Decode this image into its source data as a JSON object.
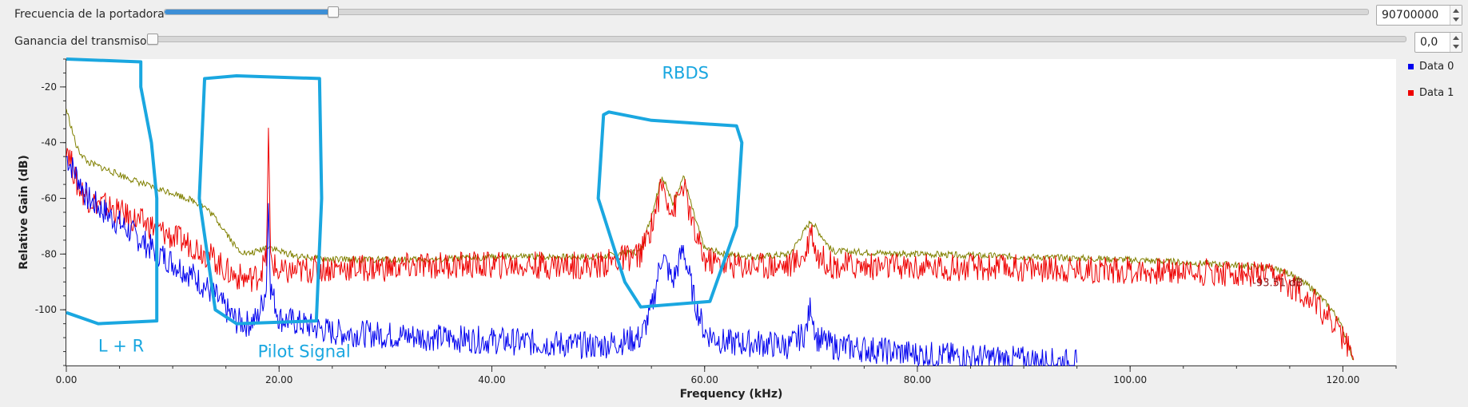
{
  "controls": {
    "carrier": {
      "label": "Frecuencia de la portadora",
      "value": "90700000",
      "slider_fraction": 0.14
    },
    "tx_gain": {
      "label": "Ganancia del transmisor",
      "value": "0,0",
      "slider_fraction": 0.0
    }
  },
  "colors": {
    "data0": "#0000ee",
    "data1": "#ee0000",
    "extra_trace": "#808000",
    "annotation": "#1aa7e0",
    "marker_text": "#8b1a1a"
  },
  "chart_data": {
    "type": "line",
    "xlabel": "Frequency (kHz)",
    "ylabel": "Relative Gain (dB)",
    "xlim": [
      0,
      125
    ],
    "ylim": [
      -120,
      -10
    ],
    "x_ticks": [
      "0.00",
      "20.00",
      "40.00",
      "60.00",
      "80.00",
      "100.00",
      "120.00"
    ],
    "y_ticks": [
      "-20",
      "-40",
      "-60",
      "-80",
      "-100"
    ],
    "legend_position": "right",
    "series": [
      {
        "name": "Data 0",
        "color": "#0000ee",
        "x": [
          0,
          1,
          2,
          4,
          6,
          8,
          10,
          12,
          14,
          15,
          16,
          17,
          18,
          18.8,
          19,
          19.2,
          20,
          22,
          25,
          30,
          35,
          40,
          45,
          50,
          54,
          55,
          56,
          57,
          58,
          59,
          60,
          62,
          65,
          68,
          69.5,
          70,
          70.5,
          72,
          75,
          80,
          85,
          90,
          95
        ],
        "y": [
          -45,
          -52,
          -60,
          -66,
          -72,
          -78,
          -83,
          -88,
          -95,
          -100,
          -104,
          -105,
          -103,
          -92,
          -60,
          -92,
          -103,
          -105,
          -108,
          -109,
          -110,
          -111,
          -112,
          -113,
          -110,
          -100,
          -80,
          -90,
          -78,
          -96,
          -108,
          -112,
          -112,
          -113,
          -108,
          -98,
          -110,
          -113,
          -114,
          -116,
          -117,
          -118,
          -119
        ]
      },
      {
        "name": "Data 1",
        "color": "#ee0000",
        "x": [
          0,
          1,
          2,
          4,
          6,
          8,
          10,
          12,
          14,
          15,
          16,
          17,
          18,
          18.8,
          19,
          19.2,
          20,
          22,
          25,
          30,
          35,
          40,
          45,
          50,
          54,
          55,
          56,
          57,
          58,
          59,
          60,
          62,
          65,
          68,
          69.5,
          70,
          70.5,
          72,
          80,
          90,
          100,
          105,
          110,
          113,
          115,
          117,
          119,
          120,
          121
        ],
        "y": [
          -40,
          -55,
          -60,
          -63,
          -67,
          -70,
          -74,
          -77,
          -82,
          -86,
          -88,
          -89,
          -88,
          -82,
          -37,
          -82,
          -87,
          -86,
          -85,
          -85,
          -84,
          -84,
          -84,
          -84,
          -80,
          -70,
          -55,
          -65,
          -55,
          -72,
          -82,
          -84,
          -84,
          -84,
          -80,
          -70,
          -80,
          -84,
          -85,
          -85,
          -86,
          -86,
          -87,
          -88,
          -91,
          -96,
          -104,
          -110,
          -118
        ]
      },
      {
        "name": "",
        "color": "#808000",
        "x": [
          0,
          1,
          2,
          4,
          6,
          8,
          10,
          12,
          13,
          14,
          15,
          16,
          17,
          18,
          19,
          20,
          22,
          25,
          30,
          35,
          40,
          45,
          50,
          54,
          55,
          56,
          57,
          58,
          59,
          60,
          62,
          65,
          68,
          70,
          72,
          80,
          90,
          100,
          105,
          110,
          113,
          115,
          117,
          119,
          120,
          121
        ],
        "y": [
          -28,
          -42,
          -47,
          -50,
          -53,
          -56,
          -58,
          -61,
          -63,
          -67,
          -72,
          -78,
          -80,
          -79,
          -77,
          -79,
          -81,
          -82,
          -82,
          -82,
          -81,
          -81,
          -81,
          -79,
          -66,
          -52,
          -62,
          -52,
          -66,
          -78,
          -80,
          -81,
          -80,
          -68,
          -79,
          -80,
          -81,
          -82,
          -83,
          -84,
          -85,
          -87,
          -92,
          -100,
          -107,
          -118
        ]
      }
    ],
    "annotations": [
      {
        "text": "L + R",
        "x": 3,
        "y": -115
      },
      {
        "text": "Pilot Signal",
        "x": 18,
        "y": -117
      },
      {
        "text": "RBDS",
        "x": 56,
        "y": -17
      }
    ],
    "marker_text": "-93.51 dB"
  }
}
